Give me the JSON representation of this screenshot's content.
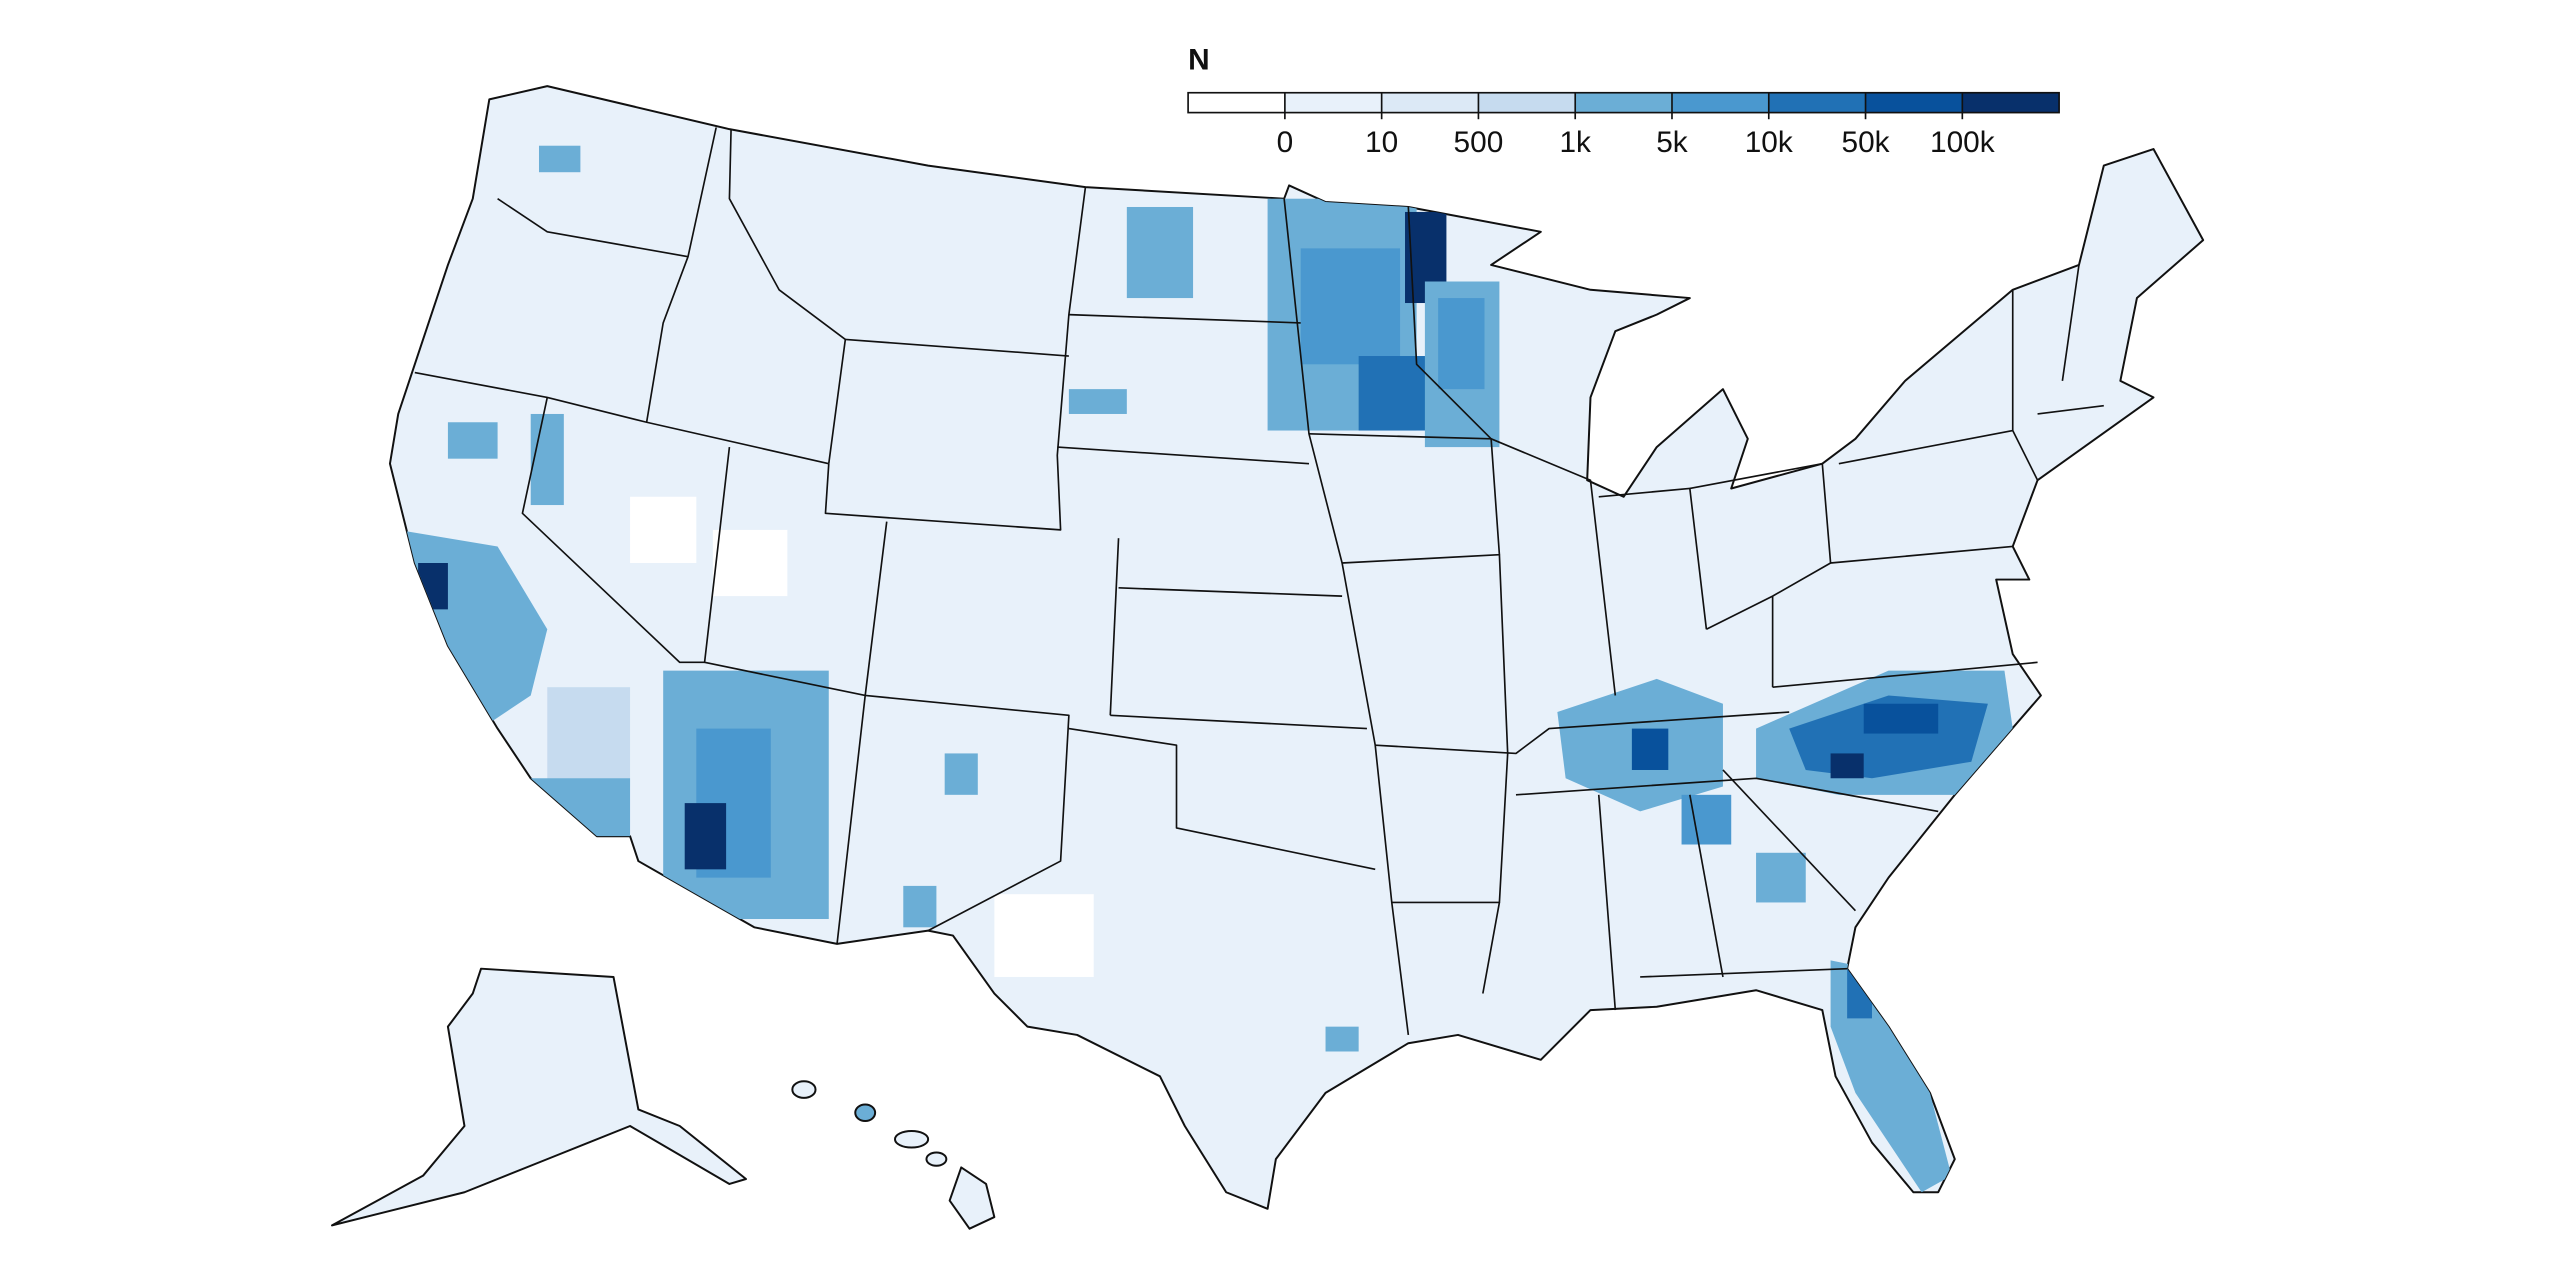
{
  "legend": {
    "title": "N",
    "colors": [
      "#ffffff",
      "#e8f1fa",
      "#dce9f6",
      "#c6dbef",
      "#6baed6",
      "#4a98cf",
      "#2171b5",
      "#08519c",
      "#08306b"
    ],
    "ticks": [
      0,
      10,
      500,
      {
        "value": 1000,
        "label": "1k"
      },
      {
        "value": 5000,
        "label": "5k"
      },
      {
        "value": 10000,
        "label": "10k"
      },
      {
        "value": 50000,
        "label": "50k"
      },
      {
        "value": 100000,
        "label": "100k"
      }
    ]
  }
}
